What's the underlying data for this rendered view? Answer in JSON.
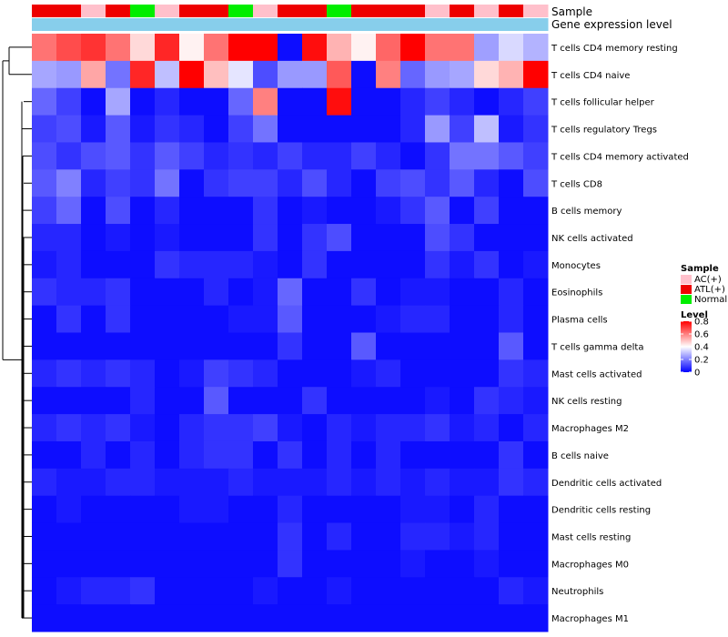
{
  "chart_data": {
    "type": "heatmap",
    "title": "",
    "annotation_labels": [
      "Sample",
      "Gene expression level"
    ],
    "annotation_tracks": {
      "sample": [
        "ATL(+)",
        "ATL(+)",
        "AC(+)",
        "ATL(+)",
        "Normal",
        "AC(+)",
        "ATL(+)",
        "ATL(+)",
        "Normal",
        "AC(+)",
        "ATL(+)",
        "ATL(+)",
        "Normal",
        "ATL(+)",
        "ATL(+)",
        "ATL(+)",
        "AC(+)",
        "ATL(+)",
        "AC(+)",
        "ATL(+)",
        "AC(+)"
      ],
      "gene_expression_level": [
        "#87CEEB",
        "#87CEEB",
        "#87CEEB",
        "#87CEEB",
        "#87CEEB",
        "#87CEEB",
        "#87CEEB",
        "#87CEEB",
        "#87CEEB",
        "#87CEEB",
        "#87CEEB",
        "#87CEEB",
        "#87CEEB",
        "#87CEEB",
        "#87CEEB",
        "#87CEEB",
        "#87CEEB",
        "#87CEEB",
        "#87CEEB",
        "#87CEEB",
        "#87CEEB"
      ]
    },
    "sample_colors": {
      "AC(+)": "#FFC0CB",
      "ATL(+)": "#EE0000",
      "Normal": "#00EE00"
    },
    "color_scale": {
      "stops": [
        0,
        0.4,
        0.8
      ],
      "colors": [
        "#0000FF",
        "#FFFFFF",
        "#FF0000"
      ]
    },
    "rows": [
      "T cells CD4 memory resting",
      "T cells CD4 naive",
      "T cells follicular helper",
      "T cells regulatory  Tregs",
      "T cells CD4 memory activated",
      "T cells CD8",
      "B cells memory",
      "NK cells activated",
      "Monocytes",
      "Eosinophils",
      "Plasma cells",
      "T cells gamma delta",
      "Mast cells activated",
      "NK cells resting",
      "Macrophages M2",
      "B cells naive",
      "Dendritic cells activated",
      "Dendritic cells resting",
      "Mast cells resting",
      "Macrophages M0",
      "Neutrophils",
      "Macrophages M1"
    ],
    "values": [
      [
        0.62,
        0.68,
        0.72,
        0.62,
        0.46,
        0.74,
        0.42,
        0.62,
        0.8,
        0.8,
        0.02,
        0.78,
        0.52,
        0.42,
        0.64,
        0.8,
        0.62,
        0.62,
        0.25,
        0.34,
        0.28
      ],
      [
        0.26,
        0.24,
        0.54,
        0.18,
        0.74,
        0.3,
        0.8,
        0.5,
        0.36,
        0.12,
        0.24,
        0.24,
        0.66,
        0.02,
        0.6,
        0.16,
        0.24,
        0.26,
        0.46,
        0.52,
        0.8
      ],
      [
        0.16,
        0.1,
        0.02,
        0.26,
        0.02,
        0.06,
        0.02,
        0.02,
        0.16,
        0.6,
        0.02,
        0.02,
        0.78,
        0.02,
        0.02,
        0.06,
        0.1,
        0.06,
        0.02,
        0.06,
        0.1
      ],
      [
        0.1,
        0.12,
        0.04,
        0.14,
        0.04,
        0.08,
        0.06,
        0.02,
        0.1,
        0.18,
        0.02,
        0.02,
        0.02,
        0.02,
        0.02,
        0.06,
        0.24,
        0.1,
        0.3,
        0.04,
        0.08
      ],
      [
        0.12,
        0.08,
        0.12,
        0.14,
        0.08,
        0.14,
        0.1,
        0.06,
        0.08,
        0.06,
        0.1,
        0.06,
        0.06,
        0.1,
        0.06,
        0.02,
        0.08,
        0.18,
        0.18,
        0.14,
        0.1
      ],
      [
        0.14,
        0.2,
        0.06,
        0.1,
        0.08,
        0.18,
        0.02,
        0.08,
        0.1,
        0.1,
        0.06,
        0.12,
        0.06,
        0.02,
        0.1,
        0.12,
        0.08,
        0.14,
        0.06,
        0.02,
        0.12
      ],
      [
        0.1,
        0.16,
        0.02,
        0.12,
        0.02,
        0.06,
        0.02,
        0.02,
        0.02,
        0.08,
        0.02,
        0.04,
        0.02,
        0.02,
        0.04,
        0.08,
        0.14,
        0.02,
        0.1,
        0.02,
        0.02
      ],
      [
        0.06,
        0.06,
        0.02,
        0.04,
        0.02,
        0.04,
        0.02,
        0.02,
        0.02,
        0.08,
        0.02,
        0.08,
        0.12,
        0.02,
        0.02,
        0.02,
        0.12,
        0.08,
        0.02,
        0.02,
        0.02
      ],
      [
        0.04,
        0.06,
        0.02,
        0.02,
        0.02,
        0.08,
        0.06,
        0.06,
        0.06,
        0.04,
        0.02,
        0.08,
        0.02,
        0.02,
        0.02,
        0.02,
        0.08,
        0.04,
        0.08,
        0.02,
        0.04
      ],
      [
        0.08,
        0.06,
        0.06,
        0.08,
        0.02,
        0.02,
        0.02,
        0.06,
        0.02,
        0.04,
        0.16,
        0.02,
        0.02,
        0.08,
        0.02,
        0.04,
        0.04,
        0.02,
        0.02,
        0.06,
        0.02
      ],
      [
        0.02,
        0.08,
        0.02,
        0.08,
        0.02,
        0.02,
        0.02,
        0.02,
        0.04,
        0.04,
        0.14,
        0.02,
        0.02,
        0.02,
        0.04,
        0.06,
        0.06,
        0.02,
        0.02,
        0.06,
        0.02
      ],
      [
        0.02,
        0.02,
        0.02,
        0.02,
        0.02,
        0.02,
        0.02,
        0.02,
        0.02,
        0.02,
        0.08,
        0.02,
        0.02,
        0.14,
        0.02,
        0.02,
        0.02,
        0.02,
        0.02,
        0.14,
        0.02
      ],
      [
        0.06,
        0.08,
        0.06,
        0.08,
        0.06,
        0.02,
        0.04,
        0.1,
        0.08,
        0.06,
        0.02,
        0.02,
        0.02,
        0.04,
        0.06,
        0.02,
        0.02,
        0.02,
        0.02,
        0.08,
        0.06
      ],
      [
        0.02,
        0.02,
        0.02,
        0.02,
        0.06,
        0.02,
        0.02,
        0.14,
        0.02,
        0.02,
        0.02,
        0.08,
        0.02,
        0.02,
        0.02,
        0.02,
        0.04,
        0.02,
        0.08,
        0.06,
        0.04
      ],
      [
        0.06,
        0.08,
        0.06,
        0.08,
        0.04,
        0.02,
        0.06,
        0.08,
        0.08,
        0.1,
        0.04,
        0.02,
        0.06,
        0.04,
        0.06,
        0.06,
        0.08,
        0.04,
        0.06,
        0.02,
        0.06
      ],
      [
        0.02,
        0.02,
        0.06,
        0.02,
        0.06,
        0.02,
        0.06,
        0.08,
        0.08,
        0.02,
        0.08,
        0.02,
        0.06,
        0.02,
        0.06,
        0.02,
        0.02,
        0.02,
        0.02,
        0.08,
        0.02
      ],
      [
        0.06,
        0.04,
        0.04,
        0.06,
        0.06,
        0.04,
        0.04,
        0.04,
        0.06,
        0.04,
        0.04,
        0.04,
        0.06,
        0.04,
        0.06,
        0.04,
        0.06,
        0.04,
        0.04,
        0.08,
        0.06
      ],
      [
        0.02,
        0.04,
        0.02,
        0.02,
        0.02,
        0.02,
        0.04,
        0.04,
        0.02,
        0.02,
        0.06,
        0.02,
        0.02,
        0.02,
        0.02,
        0.04,
        0.04,
        0.02,
        0.06,
        0.02,
        0.02
      ],
      [
        0.02,
        0.02,
        0.02,
        0.02,
        0.02,
        0.02,
        0.02,
        0.02,
        0.02,
        0.02,
        0.08,
        0.02,
        0.06,
        0.02,
        0.02,
        0.06,
        0.06,
        0.04,
        0.06,
        0.02,
        0.02
      ],
      [
        0.02,
        0.02,
        0.02,
        0.02,
        0.02,
        0.02,
        0.02,
        0.02,
        0.02,
        0.02,
        0.08,
        0.02,
        0.02,
        0.02,
        0.02,
        0.04,
        0.02,
        0.02,
        0.04,
        0.02,
        0.02
      ],
      [
        0.02,
        0.04,
        0.06,
        0.06,
        0.08,
        0.02,
        0.02,
        0.02,
        0.02,
        0.04,
        0.02,
        0.02,
        0.04,
        0.02,
        0.02,
        0.02,
        0.02,
        0.02,
        0.02,
        0.06,
        0.04
      ],
      [
        0.02,
        0.02,
        0.02,
        0.02,
        0.02,
        0.02,
        0.02,
        0.02,
        0.02,
        0.02,
        0.02,
        0.02,
        0.02,
        0.02,
        0.02,
        0.02,
        0.02,
        0.02,
        0.02,
        0.02,
        0.02
      ]
    ],
    "row_dendrogram": "hierarchical clustering tree on rows",
    "legends": {
      "sample": {
        "title": "Sample",
        "entries": [
          "AC(+)",
          "ATL(+)",
          "Normal"
        ]
      },
      "level": {
        "title": "Level",
        "ticks": [
          "0.8",
          "0.6",
          "0.4",
          "0.2",
          "0"
        ],
        "tick_values": [
          0.8,
          0.6,
          0.4,
          0.2,
          0
        ]
      }
    }
  }
}
